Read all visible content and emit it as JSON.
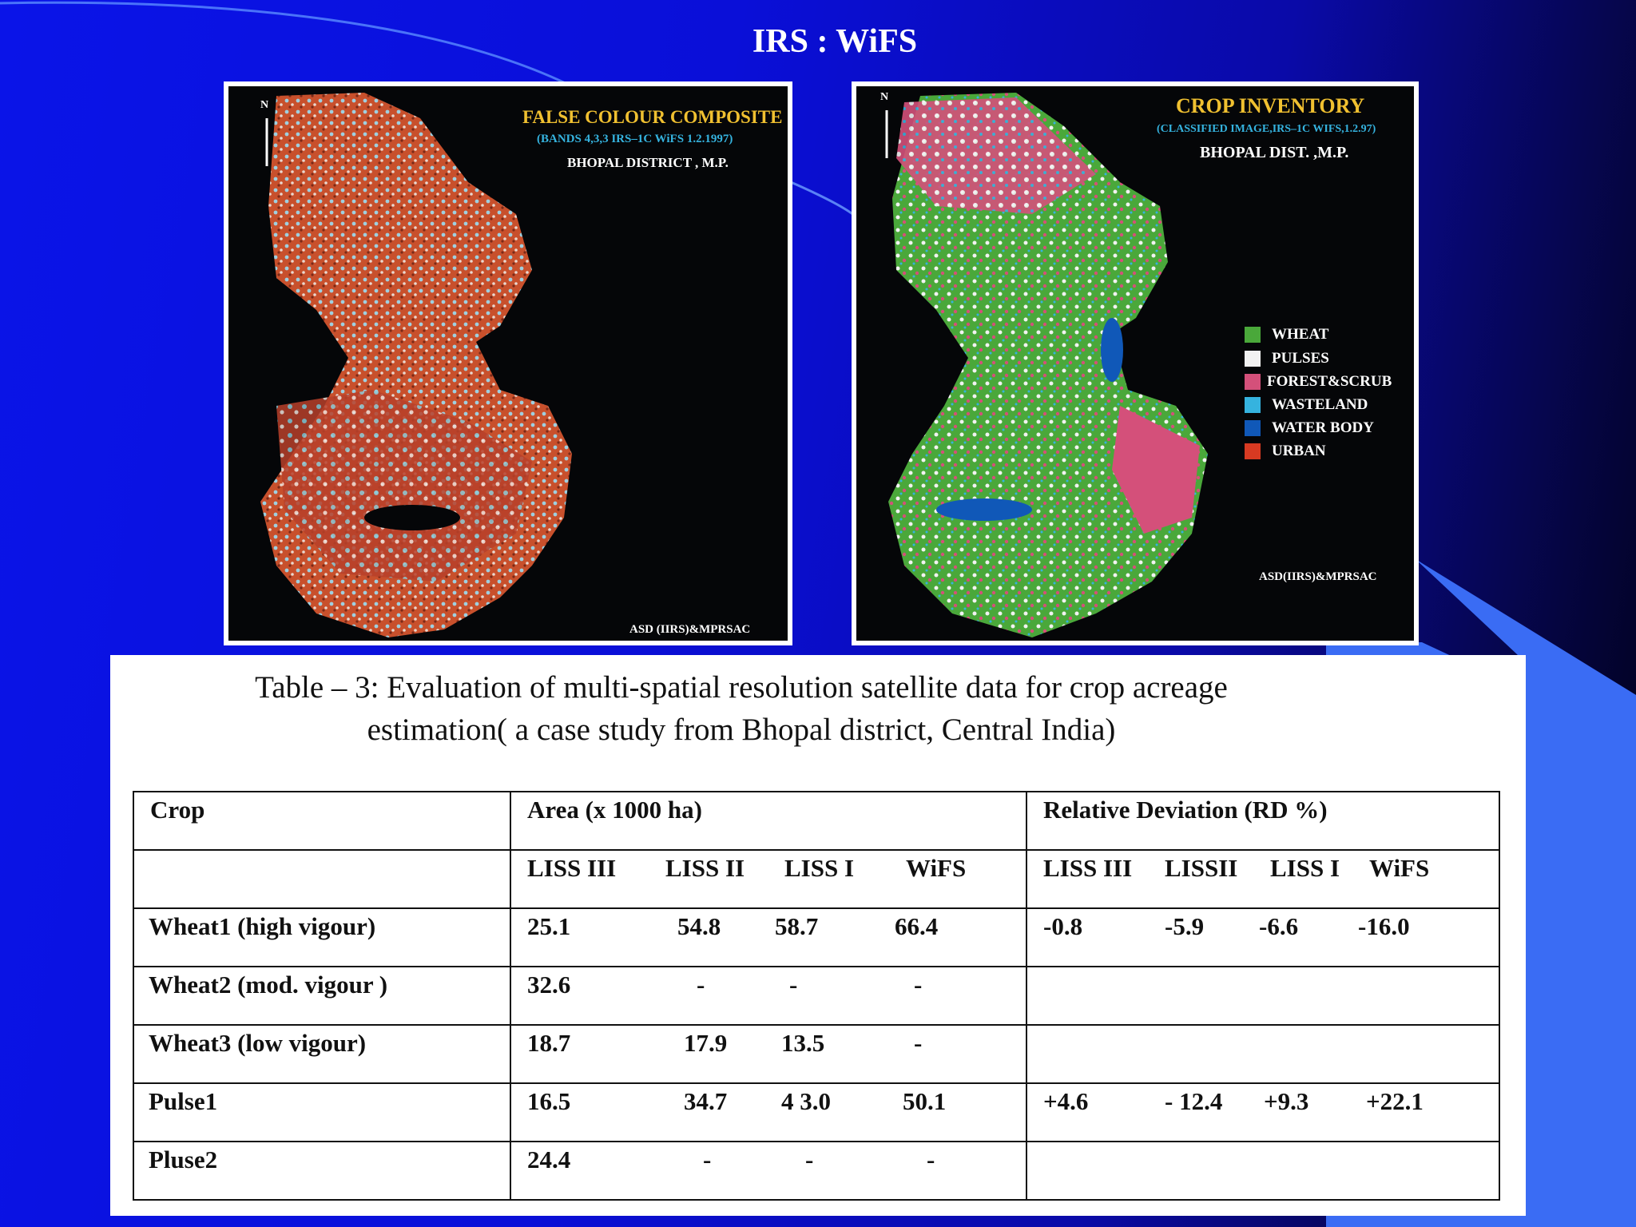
{
  "slide": {
    "title": "IRS : WiFS"
  },
  "left_map": {
    "north": "N",
    "title": "FALSE COLOUR COMPOSITE",
    "subtitle": "(BANDS 4,3,3 IRS–1C WiFS 1.2.1997)",
    "district": "BHOPAL DISTRICT , M.P.",
    "credit": "ASD (IIRS)&MPRSAC"
  },
  "right_map": {
    "north": "N",
    "title": "CROP INVENTORY",
    "subtitle": "(CLASSIFIED IMAGE,IRS–1C WIFS,1.2.97)",
    "district": "BHOPAL DIST. ,M.P.",
    "credit": "ASD(IIRS)&MPRSAC",
    "legend": [
      {
        "label": "WHEAT",
        "color": "#4aa83a"
      },
      {
        "label": "PULSES",
        "color": "#f2f2f2"
      },
      {
        "label": "FOREST&SCRUB",
        "color": "#d4507a"
      },
      {
        "label": "WASTELAND",
        "color": "#35b3df"
      },
      {
        "label": "WATER BODY",
        "color": "#1058b8"
      },
      {
        "label": "URBAN",
        "color": "#d83a22"
      }
    ]
  },
  "table": {
    "caption_line1": "Table – 3: Evaluation of multi-spatial resolution   satellite data for crop acreage",
    "caption_line2": "estimation( a case study from Bhopal district, Central India)",
    "header_crop": "Crop",
    "header_area": "Area (x 1000 ha)",
    "header_rd": "Relative Deviation (RD %)",
    "area_sensors": [
      "LISS III",
      "LISS II",
      "LISS I",
      "WiFS"
    ],
    "rd_sensors": [
      "LISS III",
      "LISSII",
      "LISS I",
      "WiFS"
    ],
    "rows": [
      {
        "crop": "Wheat1 (high vigour)",
        "area": [
          "25.1",
          "54.8",
          "58.7",
          "66.4"
        ],
        "rd": [
          "-0.8",
          "-5.9",
          "-6.6",
          "-16.0"
        ]
      },
      {
        "crop": "Wheat2 (mod. vigour )",
        "area": [
          "32.6",
          "-",
          "-",
          "-"
        ],
        "rd": [
          "",
          "",
          "",
          ""
        ]
      },
      {
        "crop": "Wheat3 (low  vigour)",
        "area": [
          "18.7",
          "17.9",
          "13.5",
          "-"
        ],
        "rd": [
          "",
          "",
          "",
          ""
        ]
      },
      {
        "crop": "Pulse1",
        "area": [
          "16.5",
          "34.7",
          "4 3.0",
          "50.1"
        ],
        "rd": [
          "+4.6",
          "- 12.4",
          "+9.3",
          "+22.1"
        ]
      },
      {
        "crop": "Pluse2",
        "area": [
          "24.4",
          "-",
          "-",
          "-"
        ],
        "rd": [
          "",
          "",
          "",
          ""
        ]
      }
    ]
  }
}
